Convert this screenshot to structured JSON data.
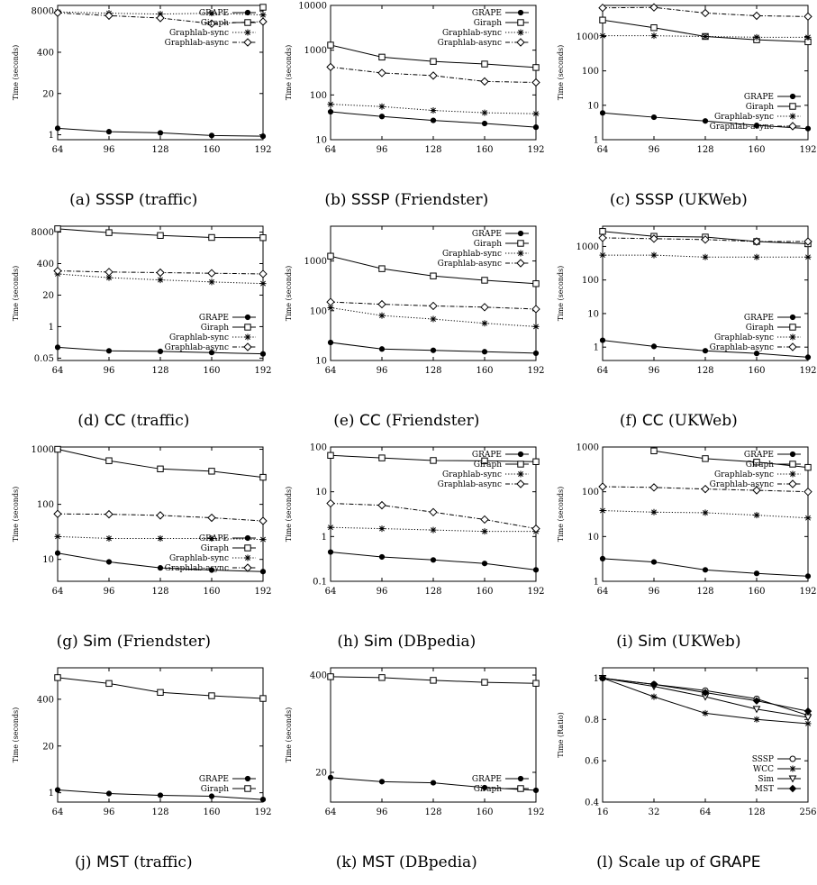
{
  "chart_data": [
    {
      "type": "line",
      "caption_label": "(a)",
      "caption_algo": "SSSP",
      "caption_dataset": "(traffic)",
      "ylabel": "Time (seconds)",
      "yscale": "log",
      "ylim": [
        0.7,
        12000
      ],
      "x": [
        64,
        96,
        128,
        160,
        192
      ],
      "yticks": [
        1,
        20,
        400,
        8000
      ],
      "ytick_labels": [
        "1",
        "20",
        "400",
        "8000"
      ],
      "series": [
        {
          "name": "GRAPE",
          "marker": "filled-circle",
          "dash": "solid",
          "values": [
            1.6,
            1.25,
            1.15,
            0.95,
            0.9
          ]
        },
        {
          "name": "Giraph",
          "marker": "square",
          "dash": "solid",
          "values": [
            null,
            null,
            null,
            null,
            10500
          ]
        },
        {
          "name": "Graphlab-sync",
          "marker": "star",
          "dash": "dotted",
          "values": [
            7500,
            6800,
            6400,
            6800,
            6000
          ]
        },
        {
          "name": "Graphlab-async",
          "marker": "diamond",
          "dash": "dashdot",
          "values": [
            7000,
            5700,
            4800,
            3200,
            3700
          ]
        }
      ]
    },
    {
      "type": "line",
      "caption_label": "(b)",
      "caption_algo": "SSSP",
      "caption_dataset": "(Friendster)",
      "ylabel": "Time (seconds)",
      "yscale": "log",
      "ylim": [
        10,
        10000
      ],
      "x": [
        64,
        96,
        128,
        160,
        192
      ],
      "yticks": [
        10,
        100,
        1000,
        10000
      ],
      "ytick_labels": [
        "10",
        "100",
        "1000",
        "10000"
      ],
      "series": [
        {
          "name": "GRAPE",
          "marker": "filled-circle",
          "dash": "solid",
          "values": [
            42,
            33,
            27,
            23,
            19
          ]
        },
        {
          "name": "Giraph",
          "marker": "square",
          "dash": "solid",
          "values": [
            1300,
            700,
            560,
            490,
            410
          ]
        },
        {
          "name": "Graphlab-sync",
          "marker": "star",
          "dash": "dotted",
          "values": [
            62,
            55,
            45,
            40,
            38
          ]
        },
        {
          "name": "Graphlab-async",
          "marker": "diamond",
          "dash": "dashdot",
          "values": [
            420,
            310,
            270,
            200,
            190
          ]
        }
      ]
    },
    {
      "type": "line",
      "caption_label": "(c)",
      "caption_algo": "SSSP",
      "caption_dataset": "(UKWeb)",
      "ylabel": "Time (seconds)",
      "yscale": "log",
      "ylim": [
        1,
        8000
      ],
      "x": [
        64,
        96,
        128,
        160,
        192
      ],
      "yticks": [
        1,
        10,
        100,
        1000
      ],
      "ytick_labels": [
        "1",
        "10",
        "100",
        "1000"
      ],
      "series": [
        {
          "name": "GRAPE",
          "marker": "filled-circle",
          "dash": "solid",
          "values": [
            6,
            4.5,
            3.5,
            2.6,
            2.1
          ]
        },
        {
          "name": "Giraph",
          "marker": "square",
          "dash": "solid",
          "values": [
            3000,
            1800,
            1000,
            800,
            700
          ]
        },
        {
          "name": "Graphlab-sync",
          "marker": "star",
          "dash": "dotted",
          "values": [
            1050,
            1050,
            1000,
            950,
            950
          ]
        },
        {
          "name": "Graphlab-async",
          "marker": "diamond",
          "dash": "dashdot",
          "values": [
            6800,
            7000,
            4800,
            4000,
            3800
          ]
        }
      ]
    },
    {
      "type": "line",
      "caption_label": "(d)",
      "caption_algo": "CC",
      "caption_dataset": "(traffic)",
      "ylabel": "Time (seconds)",
      "yscale": "log",
      "ylim": [
        0.04,
        14000
      ],
      "x": [
        64,
        96,
        128,
        160,
        192
      ],
      "yticks": [
        0.05,
        1,
        20,
        400,
        8000
      ],
      "ytick_labels": [
        "0.05",
        "1",
        "20",
        "400",
        "8000"
      ],
      "series": [
        {
          "name": "GRAPE",
          "marker": "filled-circle",
          "dash": "solid",
          "values": [
            0.14,
            0.1,
            0.095,
            0.085,
            0.075
          ]
        },
        {
          "name": "Giraph",
          "marker": "square",
          "dash": "solid",
          "values": [
            11000,
            7600,
            5800,
            4800,
            4700
          ]
        },
        {
          "name": "Graphlab-sync",
          "marker": "star",
          "dash": "dotted",
          "values": [
            150,
            105,
            85,
            70,
            60
          ]
        },
        {
          "name": "Graphlab-async",
          "marker": "diamond",
          "dash": "dashdot",
          "values": [
            200,
            180,
            170,
            160,
            150
          ]
        }
      ]
    },
    {
      "type": "line",
      "caption_label": "(e)",
      "caption_algo": "CC",
      "caption_dataset": "(Friendster)",
      "ylabel": "Time (seconds)",
      "yscale": "log",
      "ylim": [
        10,
        5000
      ],
      "x": [
        64,
        96,
        128,
        160,
        192
      ],
      "yticks": [
        10,
        100,
        1000
      ],
      "ytick_labels": [
        "10",
        "100",
        "1000"
      ],
      "series": [
        {
          "name": "GRAPE",
          "marker": "filled-circle",
          "dash": "solid",
          "values": [
            23,
            17,
            16,
            15,
            14
          ]
        },
        {
          "name": "Giraph",
          "marker": "square",
          "dash": "solid",
          "values": [
            1250,
            700,
            500,
            410,
            350
          ]
        },
        {
          "name": "Graphlab-sync",
          "marker": "star",
          "dash": "dotted",
          "values": [
            115,
            80,
            68,
            56,
            48
          ]
        },
        {
          "name": "Graphlab-async",
          "marker": "diamond",
          "dash": "dashdot",
          "values": [
            150,
            135,
            125,
            118,
            108
          ]
        }
      ]
    },
    {
      "type": "line",
      "caption_label": "(f)",
      "caption_algo": "CC",
      "caption_dataset": "(UKWeb)",
      "ylabel": "Time (seconds)",
      "yscale": "log",
      "ylim": [
        0.4,
        4000
      ],
      "x": [
        64,
        96,
        128,
        160,
        192
      ],
      "yticks": [
        1,
        10,
        100,
        1000
      ],
      "ytick_labels": [
        "1",
        "10",
        "100",
        "1000"
      ],
      "series": [
        {
          "name": "GRAPE",
          "marker": "filled-circle",
          "dash": "solid",
          "values": [
            1.6,
            1.05,
            0.78,
            0.65,
            0.5
          ]
        },
        {
          "name": "Giraph",
          "marker": "square",
          "dash": "solid",
          "values": [
            2800,
            2000,
            1900,
            1400,
            1200
          ]
        },
        {
          "name": "Graphlab-sync",
          "marker": "star",
          "dash": "dotted",
          "values": [
            550,
            550,
            480,
            480,
            480
          ]
        },
        {
          "name": "Graphlab-async",
          "marker": "diamond",
          "dash": "dashdot",
          "values": [
            1800,
            1700,
            1600,
            1400,
            1400
          ]
        }
      ]
    },
    {
      "type": "line",
      "caption_label": "(g)",
      "caption_algo": "Sim",
      "caption_dataset": "(Friendster)",
      "ylabel": "Time (seconds)",
      "yscale": "log",
      "ylim": [
        4,
        1100
      ],
      "x": [
        64,
        96,
        128,
        160,
        192
      ],
      "yticks": [
        10,
        100,
        1000
      ],
      "ytick_labels": [
        "10",
        "100",
        "1000"
      ],
      "series": [
        {
          "name": "GRAPE",
          "marker": "filled-circle",
          "dash": "solid",
          "values": [
            13,
            9,
            7,
            6.4,
            6
          ]
        },
        {
          "name": "Giraph",
          "marker": "square",
          "dash": "solid",
          "values": [
            1000,
            620,
            440,
            400,
            310
          ]
        },
        {
          "name": "Graphlab-sync",
          "marker": "star",
          "dash": "dotted",
          "values": [
            26,
            24,
            24,
            24,
            23
          ]
        },
        {
          "name": "Graphlab-async",
          "marker": "diamond",
          "dash": "dashdot",
          "values": [
            67,
            66,
            63,
            57,
            50
          ]
        }
      ]
    },
    {
      "type": "line",
      "caption_label": "(h)",
      "caption_algo": "Sim",
      "caption_dataset": "(DBpedia)",
      "ylabel": "Time (seconds)",
      "yscale": "log",
      "ylim": [
        0.1,
        100
      ],
      "x": [
        64,
        96,
        128,
        160,
        192
      ],
      "yticks": [
        0.1,
        1,
        10,
        100
      ],
      "ytick_labels": [
        "0.1",
        "1",
        "10",
        "100"
      ],
      "series": [
        {
          "name": "GRAPE",
          "marker": "filled-circle",
          "dash": "solid",
          "values": [
            0.45,
            0.35,
            0.3,
            0.25,
            0.18
          ]
        },
        {
          "name": "Giraph",
          "marker": "square",
          "dash": "solid",
          "values": [
            65,
            57,
            50,
            49,
            47
          ]
        },
        {
          "name": "Graphlab-sync",
          "marker": "star",
          "dash": "dotted",
          "values": [
            1.6,
            1.5,
            1.4,
            1.3,
            1.3
          ]
        },
        {
          "name": "Graphlab-async",
          "marker": "diamond",
          "dash": "dashdot",
          "values": [
            5.5,
            5,
            3.5,
            2.4,
            1.5
          ]
        }
      ]
    },
    {
      "type": "line",
      "caption_label": "(i)",
      "caption_algo": "Sim",
      "caption_dataset": "(UKWeb)",
      "ylabel": "Time (seconds)",
      "yscale": "log",
      "ylim": [
        1,
        1000
      ],
      "x": [
        64,
        96,
        128,
        160,
        192
      ],
      "yticks": [
        1,
        10,
        100,
        1000
      ],
      "ytick_labels": [
        "1",
        "10",
        "100",
        "1000"
      ],
      "series": [
        {
          "name": "GRAPE",
          "marker": "filled-circle",
          "dash": "solid",
          "values": [
            3.2,
            2.7,
            1.8,
            1.5,
            1.3
          ]
        },
        {
          "name": "Giraph",
          "marker": "square",
          "dash": "solid",
          "values": [
            null,
            820,
            550,
            460,
            350
          ]
        },
        {
          "name": "Graphlab-sync",
          "marker": "star",
          "dash": "dotted",
          "values": [
            38,
            35,
            34,
            30,
            26
          ]
        },
        {
          "name": "Graphlab-async",
          "marker": "diamond",
          "dash": "dashdot",
          "values": [
            130,
            125,
            115,
            108,
            100
          ]
        }
      ]
    },
    {
      "type": "line",
      "caption_label": "(j)",
      "caption_algo": "MST",
      "caption_dataset": "(traffic)",
      "ylabel": "Time (seconds)",
      "yscale": "log",
      "ylim": [
        0.55,
        3000
      ],
      "x": [
        64,
        96,
        128,
        160,
        192
      ],
      "yticks": [
        1,
        20,
        400
      ],
      "ytick_labels": [
        "1",
        "20",
        "400"
      ],
      "series": [
        {
          "name": "GRAPE",
          "marker": "filled-circle",
          "dash": "solid",
          "values": [
            1.2,
            0.95,
            0.85,
            0.8,
            0.65
          ]
        },
        {
          "name": "Giraph",
          "marker": "square",
          "dash": "solid",
          "values": [
            1600,
            1100,
            620,
            500,
            420
          ]
        }
      ]
    },
    {
      "type": "line",
      "caption_label": "(k)",
      "caption_algo": "MST",
      "caption_dataset": "(DBpedia)",
      "ylabel": "Time (seconds)",
      "yscale": "log",
      "ylim": [
        8,
        500
      ],
      "x": [
        64,
        96,
        128,
        160,
        192
      ],
      "yticks": [
        20,
        400
      ],
      "ytick_labels": [
        "20",
        "400"
      ],
      "series": [
        {
          "name": "GRAPE",
          "marker": "filled-circle",
          "dash": "solid",
          "values": [
            17,
            15,
            14.5,
            12.5,
            11.5
          ]
        },
        {
          "name": "Giraph",
          "marker": "square",
          "dash": "solid",
          "values": [
            380,
            370,
            340,
            320,
            310
          ]
        }
      ]
    },
    {
      "type": "line",
      "caption_label": "(l)",
      "caption_algo": "",
      "caption_text": "Scale up of",
      "caption_dataset": "GRAPE",
      "ylabel": "Time (Ratio)",
      "yscale": "linear",
      "ylim": [
        0.4,
        1.05
      ],
      "xscale": "log2",
      "x": [
        16,
        32,
        64,
        128,
        256
      ],
      "yticks": [
        0.4,
        0.6,
        0.8,
        1
      ],
      "ytick_labels": [
        "0.4",
        "0.6",
        "0.8",
        "1"
      ],
      "series": [
        {
          "name": "SSSP",
          "marker": "circle",
          "dash": "solid",
          "values": [
            1.0,
            0.97,
            0.94,
            0.9,
            0.82
          ]
        },
        {
          "name": "WCC",
          "marker": "star",
          "dash": "solid",
          "values": [
            1.0,
            0.91,
            0.83,
            0.8,
            0.78
          ]
        },
        {
          "name": "Sim",
          "marker": "triangle-down",
          "dash": "solid",
          "values": [
            1.0,
            0.96,
            0.91,
            0.85,
            0.81
          ]
        },
        {
          "name": "MST",
          "marker": "filled-diamond",
          "dash": "solid",
          "values": [
            1.0,
            0.97,
            0.93,
            0.89,
            0.84
          ]
        }
      ]
    }
  ]
}
